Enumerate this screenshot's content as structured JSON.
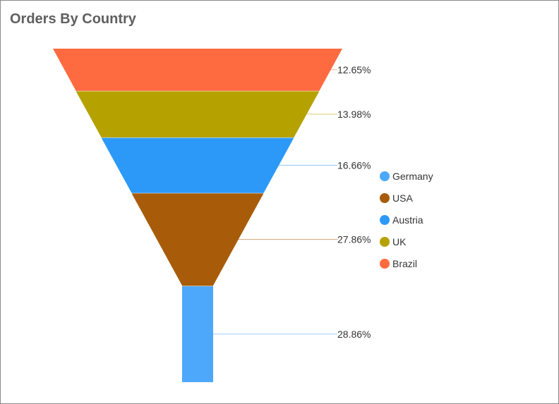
{
  "title": "Orders By Country",
  "chart_data": {
    "type": "funnel",
    "title": "Orders By Country",
    "order": "top-to-bottom",
    "segments": [
      {
        "name": "Brazil",
        "value": 12.65,
        "label": "12.65%",
        "color": "#FF6B40"
      },
      {
        "name": "UK",
        "value": 13.98,
        "label": "13.98%",
        "color": "#B5A200"
      },
      {
        "name": "Austria",
        "value": 16.66,
        "label": "16.66%",
        "color": "#2C99F8"
      },
      {
        "name": "USA",
        "value": 27.86,
        "label": "27.86%",
        "color": "#A85C0A"
      },
      {
        "name": "Germany",
        "value": 28.86,
        "label": "28.86%",
        "color": "#4DA8FB"
      }
    ],
    "legend": {
      "placement": "right",
      "items": [
        {
          "label": "Germany",
          "color": "#4DA8FB"
        },
        {
          "label": "USA",
          "color": "#A85C0A"
        },
        {
          "label": "Austria",
          "color": "#2C99F8"
        },
        {
          "label": "UK",
          "color": "#B5A200"
        },
        {
          "label": "Brazil",
          "color": "#FF6B40"
        }
      ]
    }
  }
}
